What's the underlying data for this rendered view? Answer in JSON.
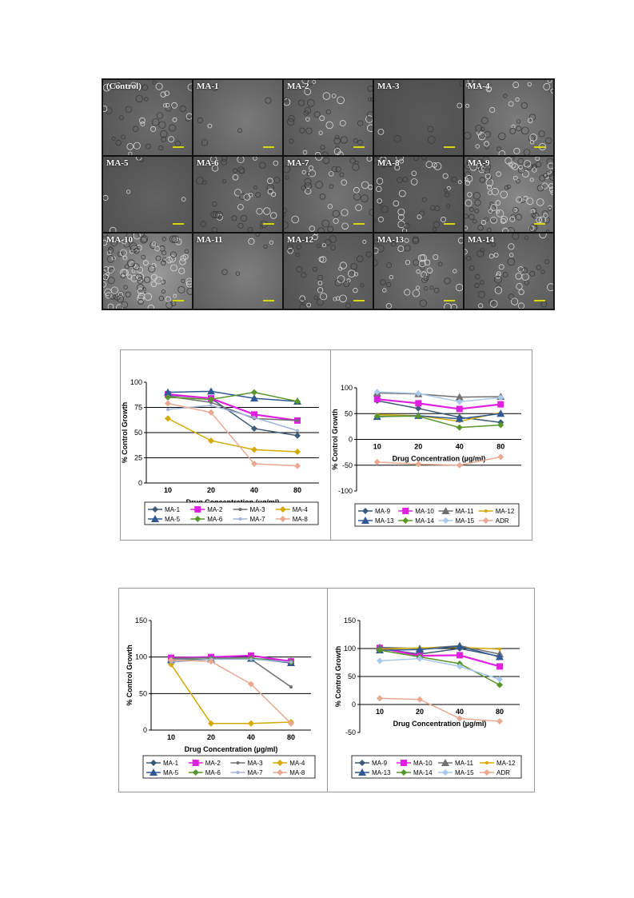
{
  "micrographs": {
    "tiles": [
      "(Control)",
      "MA-1",
      "MA-2",
      "MA-3",
      "MA-4",
      "MA-5",
      "MA-6",
      "MA-7",
      "MA-8",
      "MA-9",
      "MA-10",
      "MA-11",
      "MA-12",
      "MA-13",
      "MA-14"
    ]
  },
  "colors": {
    "MA-1": "#3c5a78",
    "MA-2": "#e020e0",
    "MA-3": "#707070",
    "MA-4": "#d4aa00",
    "MA-5": "#2e5896",
    "MA-6": "#58962a",
    "MA-7": "#a0b4d8",
    "MA-8": "#eaa890",
    "MA-9": "#3c5a78",
    "MA-10": "#e020e0",
    "MA-11": "#707070",
    "MA-12": "#d4aa00",
    "MA-13": "#2e5896",
    "MA-14": "#58962a",
    "MA-15": "#a8c8ec",
    "ADR": "#eaa890"
  },
  "chart_data": [
    {
      "type": "line",
      "xlabel": "Drug Concentration (µg/ml)",
      "ylabel": "% Control Growth",
      "categories": [
        "10",
        "20",
        "40",
        "80"
      ],
      "ylim": [
        0,
        100
      ],
      "yticks": [
        "0",
        "25",
        "50",
        "75",
        "100"
      ],
      "reflines": [
        25,
        50,
        75
      ],
      "legend_position": "bottom",
      "series": [
        {
          "name": "MA-1",
          "values": [
            87,
            84,
            54,
            47
          ]
        },
        {
          "name": "MA-2",
          "values": [
            88,
            84,
            68,
            62
          ]
        },
        {
          "name": "MA-3",
          "values": [
            86,
            80,
            64,
            62
          ]
        },
        {
          "name": "MA-4",
          "values": [
            64,
            42,
            33,
            31
          ]
        },
        {
          "name": "MA-5",
          "values": [
            90,
            91,
            84,
            81
          ]
        },
        {
          "name": "MA-6",
          "values": [
            85,
            83,
            90,
            81
          ]
        },
        {
          "name": "MA-7",
          "values": [
            73,
            77,
            65,
            52
          ]
        },
        {
          "name": "MA-8",
          "values": [
            79,
            70,
            19,
            17
          ]
        }
      ]
    },
    {
      "type": "line",
      "xlabel": "Drug Concentration (µg/ml)",
      "ylabel": "% Control Growth",
      "categories": [
        "10",
        "20",
        "40",
        "80"
      ],
      "ylim": [
        -100,
        100
      ],
      "yticks": [
        "-100",
        "-50",
        "0",
        "50",
        "100"
      ],
      "reflines": [
        50,
        -50
      ],
      "legend_position": "bottom",
      "series": [
        {
          "name": "MA-9",
          "values": [
            75,
            60,
            43,
            33
          ]
        },
        {
          "name": "MA-10",
          "values": [
            78,
            70,
            59,
            68
          ]
        },
        {
          "name": "MA-11",
          "values": [
            90,
            88,
            82,
            83
          ]
        },
        {
          "name": "MA-12",
          "values": [
            48,
            46,
            35,
            52
          ]
        },
        {
          "name": "MA-13",
          "values": [
            44,
            46,
            40,
            50
          ]
        },
        {
          "name": "MA-14",
          "values": [
            45,
            45,
            23,
            28
          ]
        },
        {
          "name": "MA-15",
          "values": [
            92,
            89,
            73,
            81
          ]
        },
        {
          "name": "ADR",
          "values": [
            -44,
            -48,
            -50,
            -34
          ]
        }
      ]
    },
    {
      "type": "line",
      "xlabel": "Drug Concentration (µg/ml)",
      "ylabel": "% Control Growth",
      "categories": [
        "10",
        "20",
        "40",
        "80"
      ],
      "ylim": [
        0,
        150
      ],
      "yticks": [
        "0",
        "50",
        "100",
        "150"
      ],
      "reflines": [
        50,
        100
      ],
      "legend_position": "bottom",
      "series": [
        {
          "name": "MA-1",
          "values": [
            98,
            99,
            98,
            95
          ]
        },
        {
          "name": "MA-2",
          "values": [
            99,
            100,
            102,
            94
          ]
        },
        {
          "name": "MA-3",
          "values": [
            98,
            99,
            97,
            59
          ]
        },
        {
          "name": "MA-4",
          "values": [
            90,
            9,
            9,
            11
          ]
        },
        {
          "name": "MA-5",
          "values": [
            96,
            97,
            98,
            92
          ]
        },
        {
          "name": "MA-6",
          "values": [
            95,
            97,
            98,
            93
          ]
        },
        {
          "name": "MA-7",
          "values": [
            93,
            97,
            97,
            93
          ]
        },
        {
          "name": "MA-8",
          "values": [
            96,
            94,
            63,
            9
          ]
        }
      ]
    },
    {
      "type": "line",
      "xlabel": "Drug Concentration (µg/ml)",
      "ylabel": "% Control Growth",
      "categories": [
        "10",
        "20",
        "40",
        "80"
      ],
      "ylim": [
        -50,
        150
      ],
      "yticks": [
        "-50",
        "0",
        "50",
        "100",
        "150"
      ],
      "reflines": [
        100,
        50
      ],
      "legend_position": "bottom",
      "series": [
        {
          "name": "MA-9",
          "values": [
            100,
            90,
            100,
            86
          ]
        },
        {
          "name": "MA-10",
          "values": [
            101,
            87,
            88,
            68
          ]
        },
        {
          "name": "MA-11",
          "values": [
            102,
            100,
            105,
            90
          ]
        },
        {
          "name": "MA-12",
          "values": [
            99,
            101,
            102,
            99
          ]
        },
        {
          "name": "MA-13",
          "values": [
            97,
            98,
            104,
            85
          ]
        },
        {
          "name": "MA-14",
          "values": [
            97,
            85,
            73,
            35
          ]
        },
        {
          "name": "MA-15",
          "values": [
            78,
            82,
            68,
            45
          ]
        },
        {
          "name": "ADR",
          "values": [
            11,
            9,
            -25,
            -30
          ]
        }
      ]
    }
  ]
}
